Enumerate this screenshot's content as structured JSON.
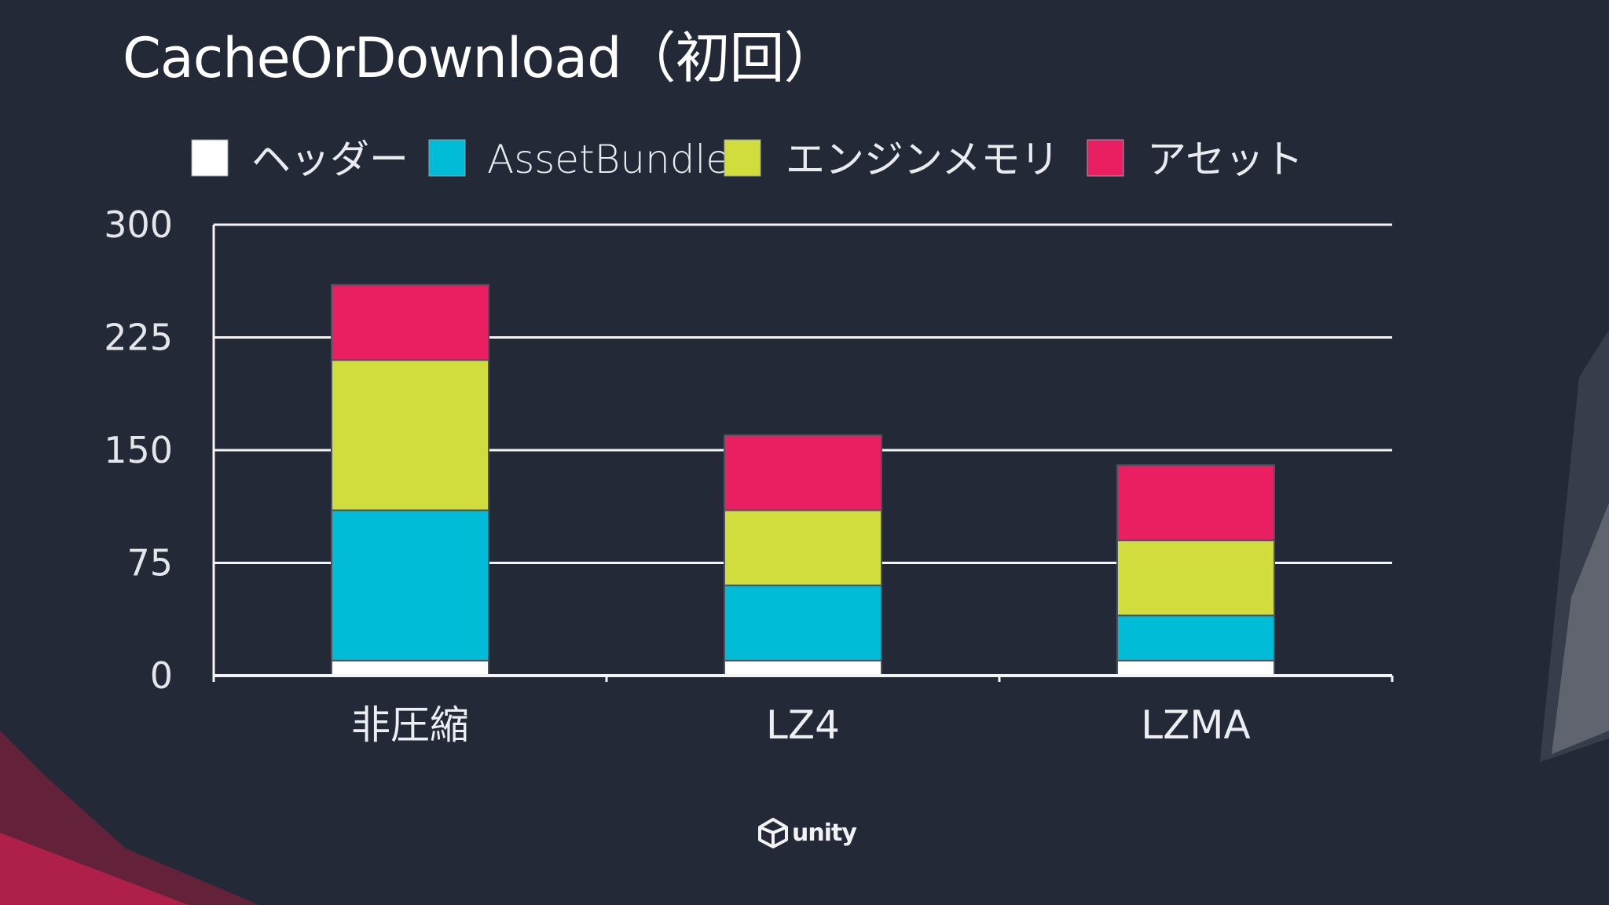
{
  "title": "CacheOrDownload（初回）",
  "colors": {
    "background": "#232936",
    "header": "#ffffff",
    "assetbundle": "#00bcd6",
    "engine_memory": "#d1dc3d",
    "asset": "#e91f62"
  },
  "chart_data": {
    "type": "bar",
    "stacked": true,
    "categories": [
      "非圧縮",
      "LZ4",
      "LZMA"
    ],
    "series": [
      {
        "name": "ヘッダー",
        "color": "#ffffff",
        "values": [
          10,
          10,
          10
        ]
      },
      {
        "name": "AssetBundle",
        "color": "#00bcd6",
        "values": [
          100,
          50,
          30
        ]
      },
      {
        "name": "エンジンメモリ",
        "color": "#d1dc3d",
        "values": [
          100,
          50,
          50
        ]
      },
      {
        "name": "アセット",
        "color": "#e91f62",
        "values": [
          50,
          50,
          50
        ]
      }
    ],
    "y_ticks": [
      0,
      75,
      150,
      225,
      300
    ],
    "ylim": [
      0,
      300
    ],
    "grid": true,
    "legend_position": "top",
    "title": "",
    "xlabel": "",
    "ylabel": ""
  },
  "logo": {
    "text": "unity",
    "icon": "unity-cube-icon"
  }
}
